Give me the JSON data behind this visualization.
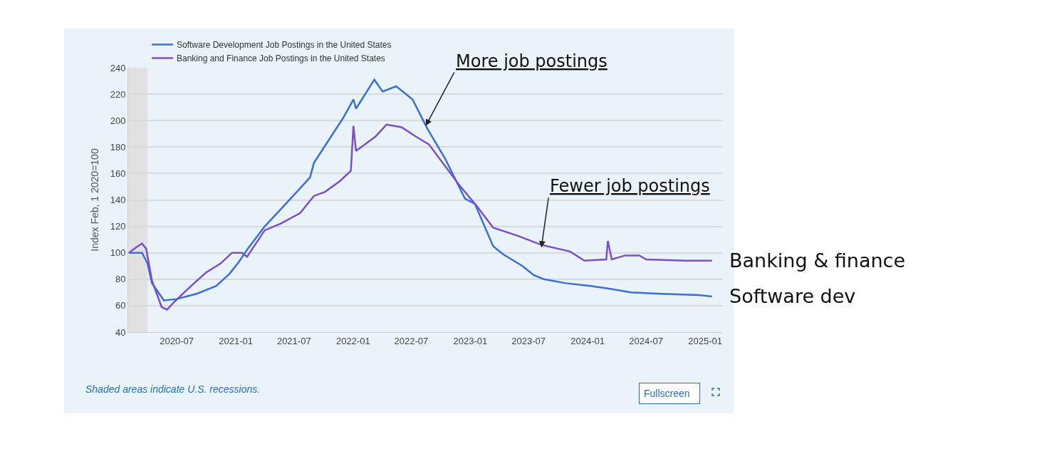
{
  "chart_data": {
    "type": "line",
    "ylabel": "Index Feb, 1 2020=100",
    "xlim": [
      "2020-02-01",
      "2025-02-25"
    ],
    "xticks": [
      "2020-07",
      "2021-01",
      "2021-07",
      "2022-01",
      "2022-07",
      "2023-01",
      "2023-07",
      "2024-01",
      "2024-07",
      "2025-01"
    ],
    "ylim": [
      40,
      240
    ],
    "yticks": [
      40,
      60,
      80,
      100,
      120,
      140,
      160,
      180,
      200,
      220,
      240
    ],
    "grid": "y",
    "legend": "top left",
    "marker": "none",
    "line_style": "solid",
    "bands": [
      {
        "axis": "x",
        "from": "2020-02-01",
        "to": "2020-04-01",
        "color": "#e1e1e1"
      }
    ],
    "series": [
      {
        "name": "Software Development Job Postings in the United States",
        "color": "#3a6fd8",
        "x": [
          "2020-02-03",
          "2020-03-15",
          "2020-04-01",
          "2020-04-15",
          "2020-05-22",
          "2020-07-01",
          "2020-09-01",
          "2020-11-01",
          "2020-12-12",
          "2021-01-10",
          "2021-02-07",
          "2021-04-01",
          "2021-05-25",
          "2021-08-20",
          "2021-09-01",
          "2021-12-01",
          "2022-01-02",
          "2022-01-10",
          "2022-03-08",
          "2022-04-03",
          "2022-05-15",
          "2022-07-05",
          "2022-08-20",
          "2022-10-15",
          "2022-12-15",
          "2023-01-15",
          "2023-03-13",
          "2023-04-12",
          "2023-06-12",
          "2023-07-18",
          "2023-08-18",
          "2023-10-25",
          "2024-01-06",
          "2024-03-04",
          "2024-05-15",
          "2024-08-15",
          "2024-12-12",
          "2025-01-22"
        ],
        "values": [
          100,
          100,
          92,
          77,
          64,
          65,
          69,
          75,
          84,
          93,
          103,
          120,
          134,
          157,
          168,
          202,
          216,
          209,
          231,
          222,
          226,
          216,
          194,
          171,
          141,
          137,
          105,
          99,
          90,
          83,
          80,
          77,
          75,
          73,
          70,
          69,
          68,
          67
        ]
      },
      {
        "name": "Banking and Finance Job Postings in the United States",
        "color": "#7b4fc9",
        "x": [
          "2020-02-03",
          "2020-02-25",
          "2020-03-15",
          "2020-03-28",
          "2020-04-15",
          "2020-05-15",
          "2020-06-01",
          "2020-06-20",
          "2020-07-20",
          "2020-08-15",
          "2020-09-30",
          "2020-11-15",
          "2020-12-20",
          "2021-01-20",
          "2021-02-05",
          "2021-04-01",
          "2021-05-20",
          "2021-07-20",
          "2021-09-01",
          "2021-10-05",
          "2021-11-20",
          "2021-12-25",
          "2022-01-02",
          "2022-01-10",
          "2022-03-12",
          "2022-04-15",
          "2022-06-01",
          "2022-07-15",
          "2022-08-25",
          "2022-11-25",
          "2023-01-22",
          "2023-03-13",
          "2023-05-27",
          "2023-08-10",
          "2023-11-07",
          "2023-12-22",
          "2024-02-28",
          "2024-03-04",
          "2024-03-16",
          "2024-04-27",
          "2024-06-10",
          "2024-07-01",
          "2024-11-01",
          "2025-01-22"
        ],
        "values": [
          100,
          104,
          107,
          103,
          79,
          59,
          57,
          62,
          69,
          75,
          85,
          92,
          100,
          100,
          97,
          117,
          122,
          130,
          143,
          146,
          154,
          162,
          196,
          177,
          188,
          197,
          195,
          188,
          182,
          152,
          135,
          119,
          113,
          106,
          101,
          94,
          95,
          109,
          95,
          98,
          98,
          95,
          94,
          94
        ]
      }
    ],
    "annotations": [
      {
        "text": "More job postings",
        "x": "2022-08-15",
        "y": 196
      },
      {
        "text": "Fewer job postings",
        "x": "2023-08-10",
        "y": 104
      },
      {
        "text": "Banking & finance",
        "x": "2025-01-22",
        "y": 94
      },
      {
        "text": "Software dev",
        "x": "2025-01-22",
        "y": 67
      },
      "Shaded areas indicate U.S. recessions.",
      "Fullscreen"
    ]
  }
}
